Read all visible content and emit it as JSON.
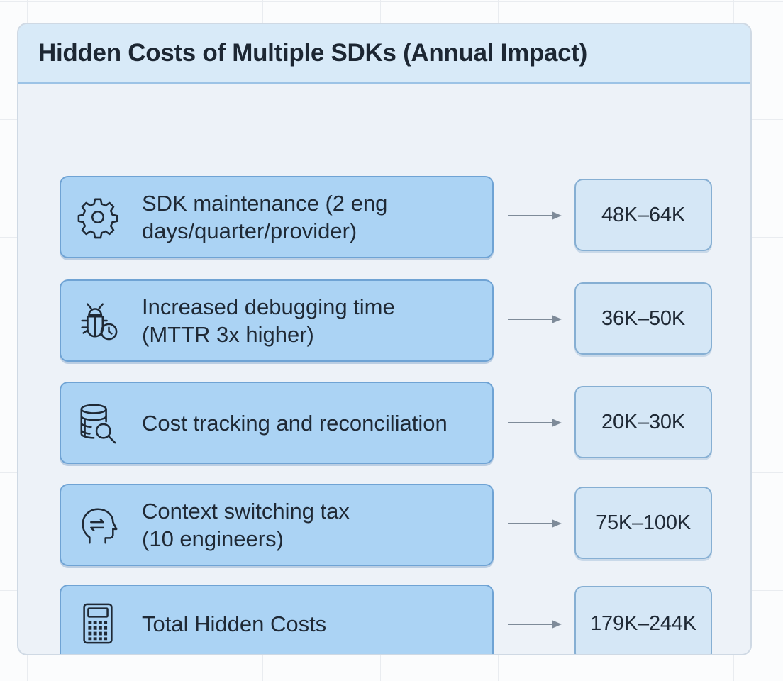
{
  "title": "Hidden Costs of Multiple SDKs (Annual Impact)",
  "items": [
    {
      "icon": "gear-icon",
      "label_lines": [
        "SDK maintenance (2 eng",
        "days/quarter/provider)"
      ],
      "value": "48K–64K"
    },
    {
      "icon": "bug-clock-icon",
      "label_lines": [
        "Increased debugging time",
        "(MTTR 3x higher)"
      ],
      "value": "36K–50K"
    },
    {
      "icon": "database-search-icon",
      "label_lines": [
        "Cost tracking and reconciliation"
      ],
      "value": "20K–30K"
    },
    {
      "icon": "head-switch-icon",
      "label_lines": [
        "Context switching tax",
        "(10 engineers)"
      ],
      "value": "75K–100K"
    },
    {
      "icon": "calculator-icon",
      "label_lines": [
        "Total Hidden Costs"
      ],
      "value": "179K–244K"
    }
  ],
  "colors": {
    "header_bg": "#d8eaf8",
    "label_box_bg": "#abd3f4",
    "value_box_bg": "#d5e7f6",
    "arrow": "#7e8b99"
  }
}
